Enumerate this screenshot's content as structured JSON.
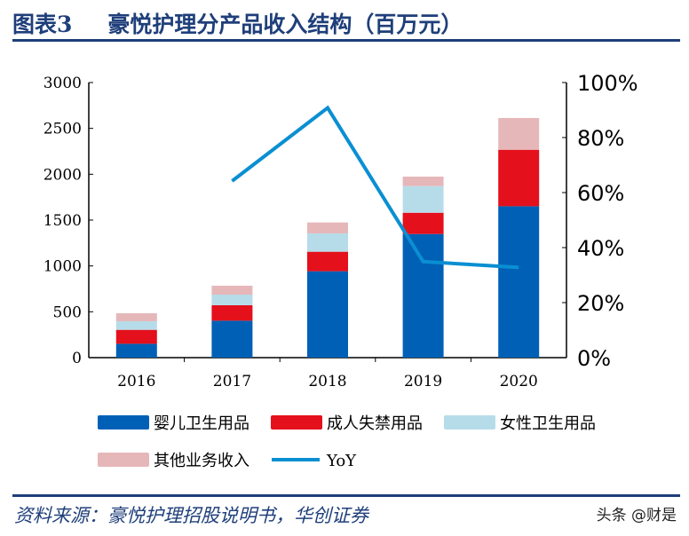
{
  "title_number": "图表3",
  "title_text": "豪悦护理分产品收入结构（百万元）",
  "source": "资料来源：豪悦护理招股说明书，华创证券",
  "watermark": "头条 @财是",
  "chart_data": {
    "type": "bar",
    "stacked": true,
    "categories": [
      "2016",
      "2017",
      "2018",
      "2019",
      "2020"
    ],
    "series": [
      {
        "name": "婴儿卫生用品",
        "color": "#0060b6",
        "values": [
          151,
          403,
          942,
          1348,
          1651
        ]
      },
      {
        "name": "成人失禁用品",
        "color": "#e4101c",
        "values": [
          152,
          168,
          213,
          232,
          616
        ]
      },
      {
        "name": "女性卫生用品",
        "color": "#b7dce9",
        "values": [
          94,
          116,
          200,
          291,
          0
        ]
      },
      {
        "name": "其他业务收入",
        "color": "#e6b7b9",
        "values": [
          87,
          97,
          119,
          103,
          346
        ]
      }
    ],
    "line": {
      "name": "YoY",
      "color": "#0a8fd2",
      "axis": "right",
      "values": [
        null,
        64.2,
        90.8,
        34.9,
        32.8
      ]
    },
    "ylim": [
      0,
      3000
    ],
    "yticks": [
      "0",
      "500",
      "1000",
      "1500",
      "2000",
      "2500",
      "3000"
    ],
    "y2lim": [
      0,
      100
    ],
    "y2ticks": [
      "0%",
      "20%",
      "40%",
      "60%",
      "80%",
      "100%"
    ],
    "grid": false,
    "legend": "bottom"
  }
}
